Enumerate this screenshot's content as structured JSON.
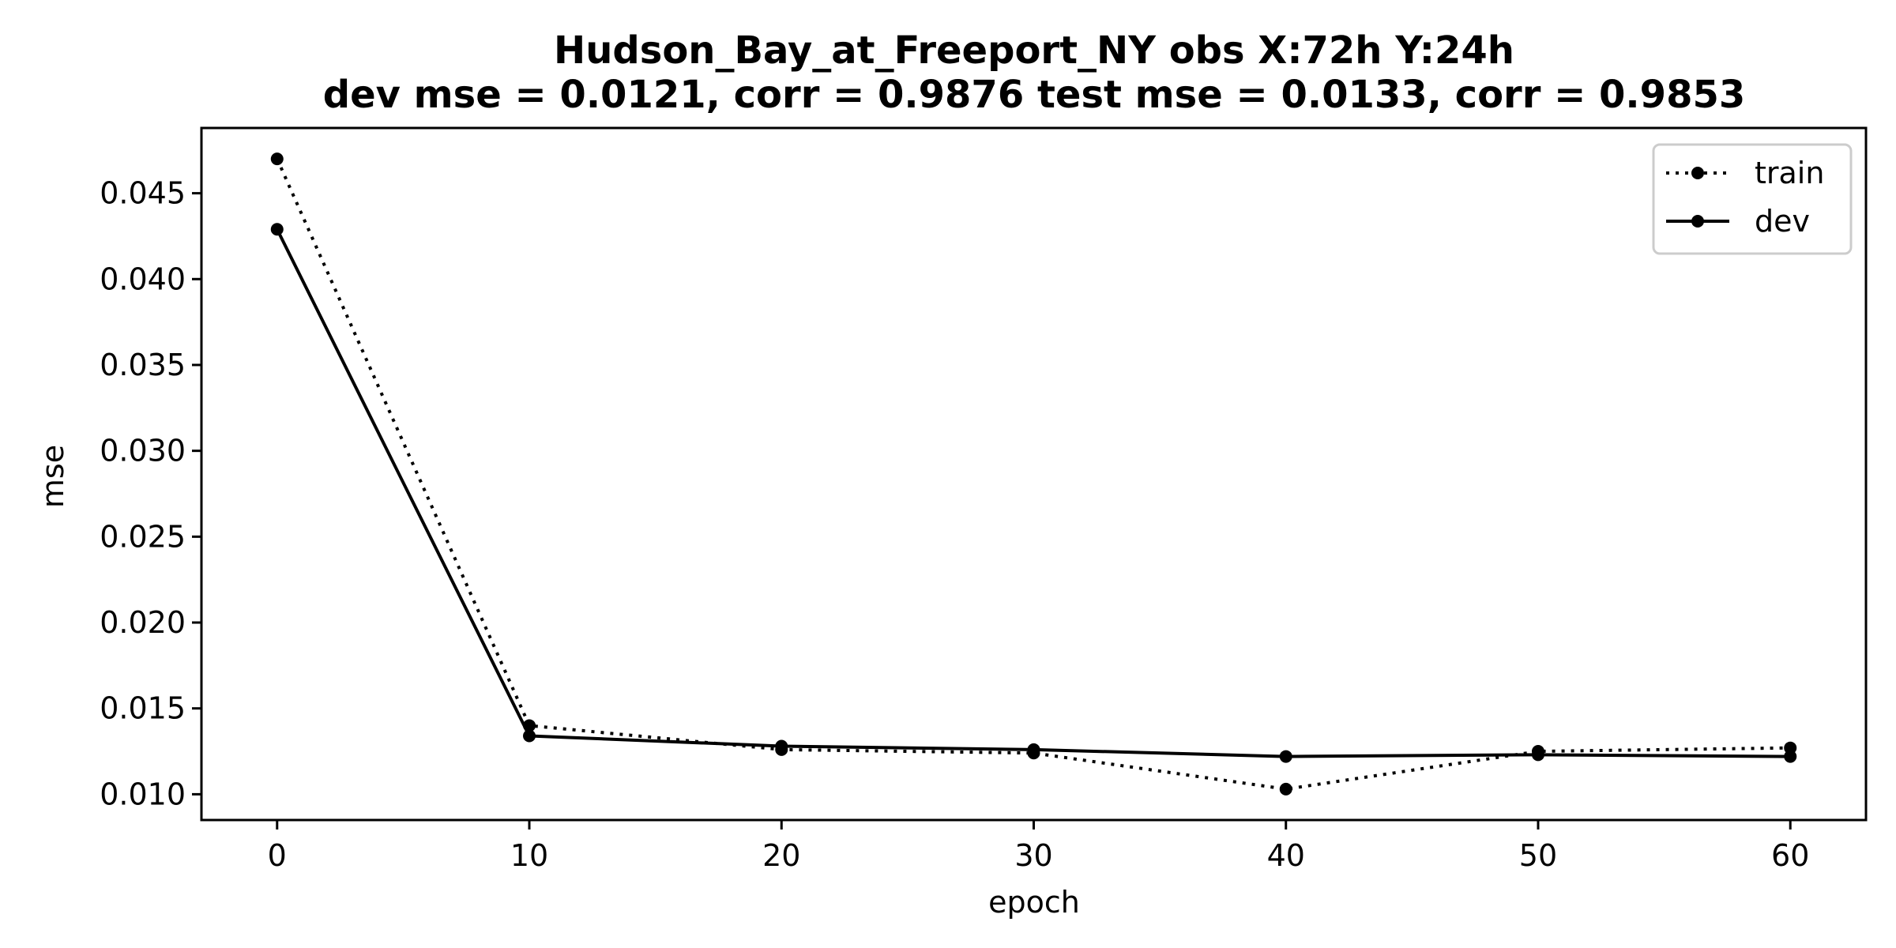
{
  "chart_data": {
    "type": "line",
    "title_line1": "Hudson_Bay_at_Freeport_NY   obs   X:72h   Y:24h",
    "title_line2": "dev mse = 0.0121, corr = 0.9876   test mse = 0.0133, corr = 0.9853",
    "xlabel": "epoch",
    "ylabel": "mse",
    "x": [
      0,
      10,
      20,
      30,
      40,
      50,
      60
    ],
    "xlim": [
      -3,
      63
    ],
    "ylim": [
      0.0085,
      0.0488
    ],
    "xticks": [
      0,
      10,
      20,
      30,
      40,
      50,
      60
    ],
    "yticks": [
      0.01,
      0.015,
      0.02,
      0.025,
      0.03,
      0.035,
      0.04,
      0.045
    ],
    "ytick_labels": [
      "0.010",
      "0.015",
      "0.020",
      "0.025",
      "0.030",
      "0.035",
      "0.040",
      "0.045"
    ],
    "grid": false,
    "legend_position": "top-right",
    "series": [
      {
        "name": "train",
        "style": "dotted",
        "marker": "dot",
        "color": "#000000",
        "values": [
          0.047,
          0.014,
          0.0126,
          0.0124,
          0.0103,
          0.0125,
          0.0127
        ]
      },
      {
        "name": "dev",
        "style": "solid",
        "marker": "dot",
        "color": "#000000",
        "values": [
          0.0429,
          0.0134,
          0.0128,
          0.0126,
          0.0122,
          0.0123,
          0.0122
        ]
      }
    ]
  }
}
